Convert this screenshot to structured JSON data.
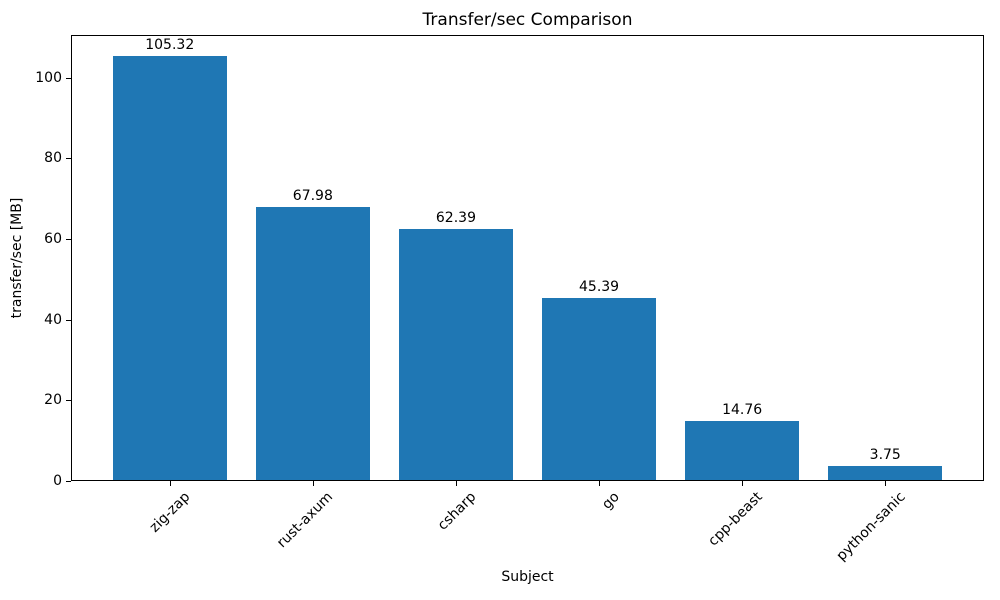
{
  "chart_data": {
    "type": "bar",
    "title": "Transfer/sec Comparison",
    "xlabel": "Subject",
    "ylabel": "transfer/sec [MB]",
    "categories": [
      "zig-zap",
      "rust-axum",
      "csharp",
      "go",
      "cpp-beast",
      "python-sanic"
    ],
    "values": [
      105.32,
      67.98,
      62.39,
      45.39,
      14.76,
      3.75
    ],
    "bar_labels": [
      "105.32",
      "67.98",
      "62.39",
      "45.39",
      "14.76",
      "3.75"
    ],
    "yticks": [
      0,
      20,
      40,
      60,
      80,
      100
    ],
    "ylim": [
      0,
      110.59
    ],
    "bar_color": "#1f77b4",
    "grid": false,
    "legend": "none",
    "x_tick_rotation_deg": 45
  }
}
